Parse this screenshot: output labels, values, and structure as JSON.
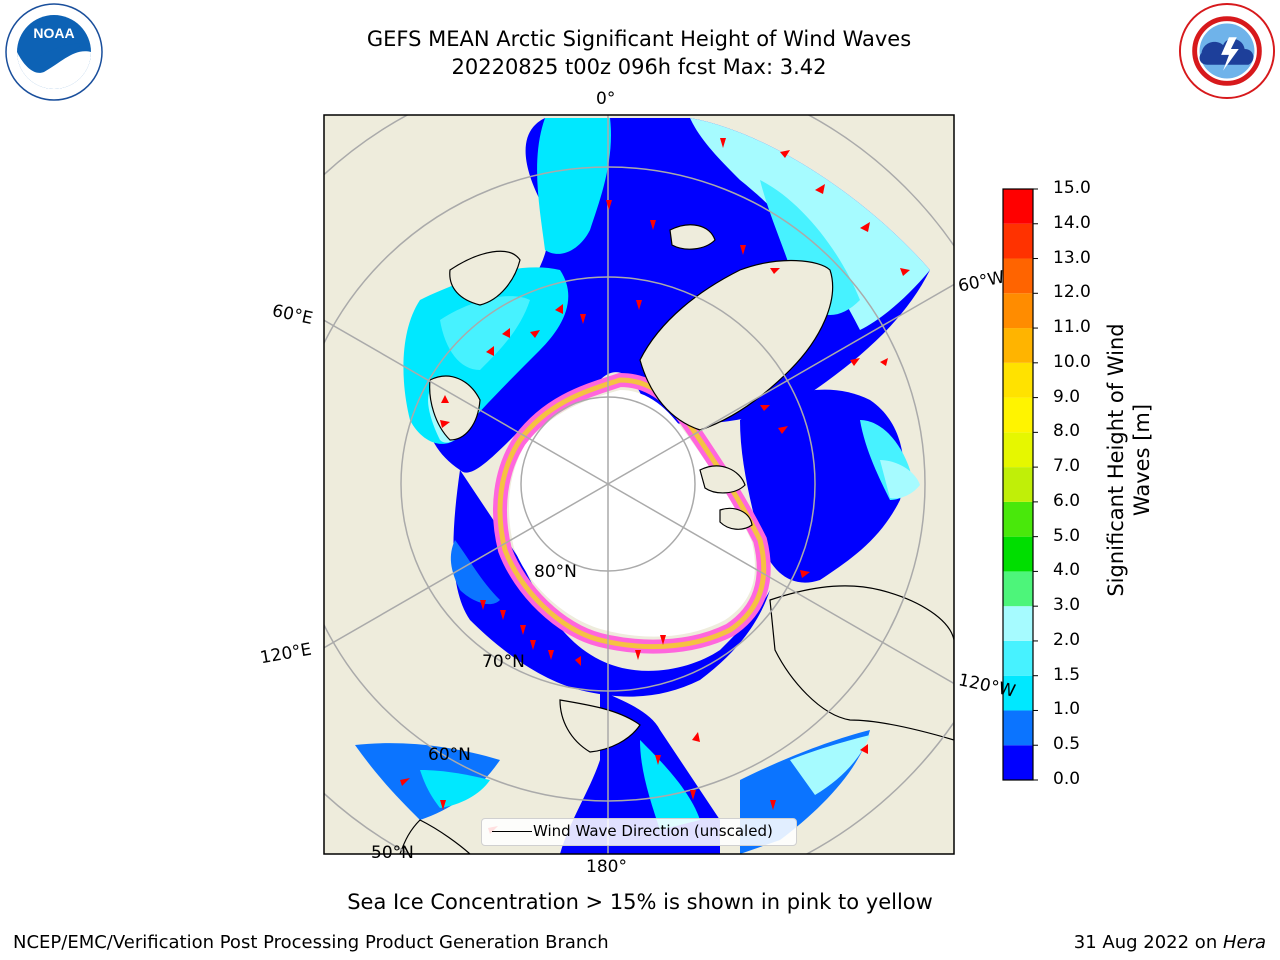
{
  "title": {
    "line1": "GEFS MEAN Arctic Significant Height of Wind Waves",
    "line2": "20220825 t00z 096h fcst   Max: 3.42"
  },
  "logos": {
    "left": {
      "name": "NOAA",
      "icon": "noaa-logo"
    },
    "right": {
      "name": "NATIONAL WEATHER SERVICE",
      "icon": "nws-logo"
    }
  },
  "map": {
    "projection": "north-polar-stereographic",
    "meridian_labels": [
      "0°",
      "60°E",
      "60°W",
      "120°E",
      "120°W",
      "180°"
    ],
    "parallel_labels": [
      "80°N",
      "70°N",
      "60°N",
      "50°N"
    ],
    "colors": {
      "land": "#eeecdc",
      "sea_ice": "#ffffff",
      "ice_edge_pink": "#ff66dd",
      "ice_edge_yellow": "#f5c242",
      "arrow": "#ff0000",
      "grid": "#aaaaaa"
    }
  },
  "legend": {
    "label": "Wind Wave Direction (unscaled)"
  },
  "colorbar": {
    "label": "Significant Height of Wind Waves [m]",
    "ticks": [
      "15.0",
      "14.0",
      "13.0",
      "12.0",
      "11.0",
      "10.0",
      "9.0",
      "8.0",
      "7.0",
      "6.0",
      "5.0",
      "4.0",
      "3.0",
      "2.0",
      "1.5",
      "1.0",
      "0.5",
      "0.0"
    ],
    "bins": [
      {
        "from": 0.0,
        "to": 0.5,
        "color": "#0000ff"
      },
      {
        "from": 0.5,
        "to": 1.0,
        "color": "#0b74ff"
      },
      {
        "from": 1.0,
        "to": 1.5,
        "color": "#00e8ff"
      },
      {
        "from": 1.5,
        "to": 2.0,
        "color": "#47f2ff"
      },
      {
        "from": 2.0,
        "to": 3.0,
        "color": "#a6fbff"
      },
      {
        "from": 3.0,
        "to": 4.0,
        "color": "#4df57a"
      },
      {
        "from": 4.0,
        "to": 5.0,
        "color": "#00de00"
      },
      {
        "from": 5.0,
        "to": 6.0,
        "color": "#49e80b"
      },
      {
        "from": 6.0,
        "to": 7.0,
        "color": "#c0ef08"
      },
      {
        "from": 7.0,
        "to": 8.0,
        "color": "#e6f700"
      },
      {
        "from": 8.0,
        "to": 9.0,
        "color": "#fff400"
      },
      {
        "from": 9.0,
        "to": 10.0,
        "color": "#ffe200"
      },
      {
        "from": 10.0,
        "to": 11.0,
        "color": "#ffb400"
      },
      {
        "from": 11.0,
        "to": 12.0,
        "color": "#ff8c00"
      },
      {
        "from": 12.0,
        "to": 13.0,
        "color": "#ff6400"
      },
      {
        "from": 13.0,
        "to": 14.0,
        "color": "#ff3200"
      },
      {
        "from": 14.0,
        "to": 15.0,
        "color": "#ff0000"
      }
    ]
  },
  "caption": "Sea Ice Concentration > 15% is shown in pink to yellow",
  "footer": {
    "left": "NCEP/EMC/Verification Post Processing Product Generation Branch",
    "right_date": "31 Aug 2022 on ",
    "right_host": "Hera"
  }
}
